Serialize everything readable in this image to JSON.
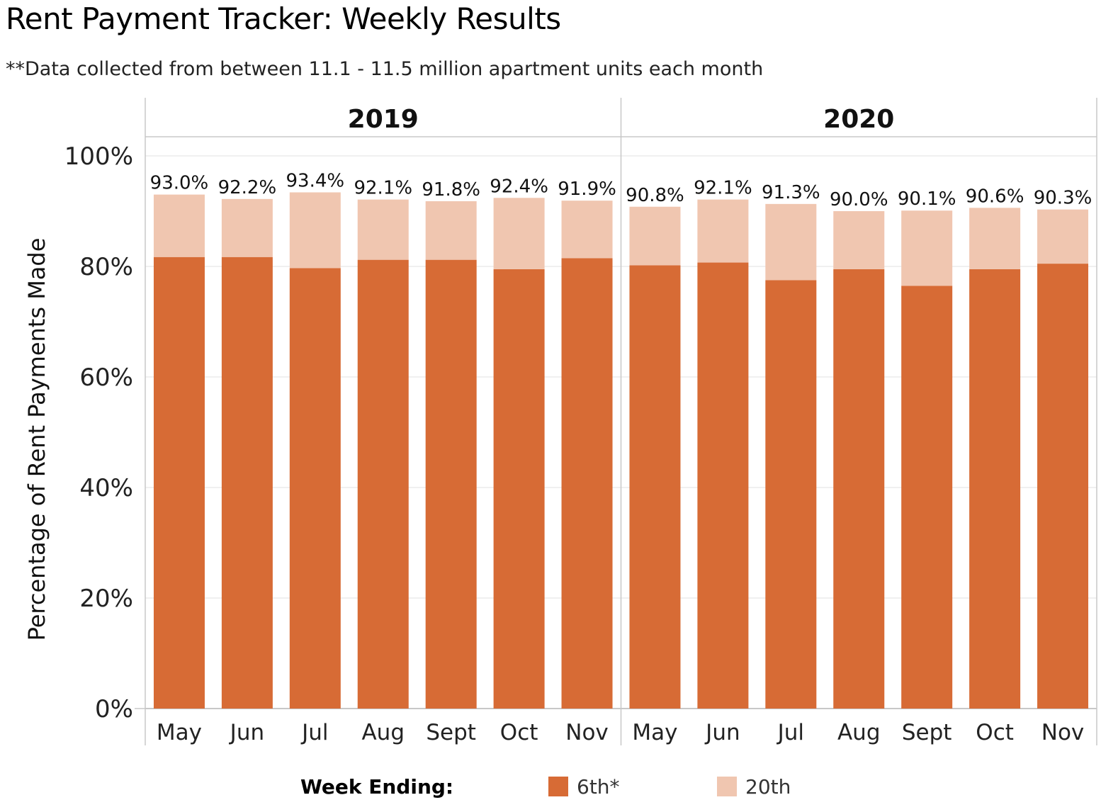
{
  "title": "Rent Payment Tracker: Weekly Results",
  "subtitle": "**Data collected from between 11.1 - 11.5 million apartment units each month",
  "colors": {
    "sixth": "#d76b35",
    "twentieth": "#f0c6b0",
    "grid": "#ececec",
    "axis": "#c8c8c8"
  },
  "legend": {
    "title": "Week Ending:",
    "items": [
      {
        "label": "6th*",
        "color": "#d76b35"
      },
      {
        "label": "20th",
        "color": "#f0c6b0"
      }
    ]
  },
  "chart_data": {
    "type": "bar",
    "stacked": true,
    "ylabel": "Percentage of Rent Payments Made",
    "ylim": [
      0,
      100
    ],
    "yticks": [
      "0%",
      "20%",
      "40%",
      "60%",
      "80%",
      "100%"
    ],
    "grid": true,
    "legend_position": "bottom",
    "panels": [
      {
        "year": "2019",
        "categories": [
          "May",
          "Jun",
          "Jul",
          "Aug",
          "Sept",
          "Oct",
          "Nov"
        ],
        "series": [
          {
            "name": "6th*",
            "values": [
              81.7,
              81.7,
              79.7,
              81.2,
              81.2,
              79.5,
              81.5
            ]
          },
          {
            "name": "20th",
            "values": [
              11.3,
              10.5,
              13.7,
              10.9,
              10.6,
              12.9,
              10.4
            ]
          }
        ],
        "totals": [
          "93.0%",
          "92.2%",
          "93.4%",
          "92.1%",
          "91.8%",
          "92.4%",
          "91.9%"
        ]
      },
      {
        "year": "2020",
        "categories": [
          "May",
          "Jun",
          "Jul",
          "Aug",
          "Sept",
          "Oct",
          "Nov"
        ],
        "series": [
          {
            "name": "6th*",
            "values": [
              80.2,
              80.7,
              77.5,
              79.5,
              76.5,
              79.5,
              80.5
            ]
          },
          {
            "name": "20th",
            "values": [
              10.6,
              11.4,
              13.8,
              10.5,
              13.6,
              11.1,
              9.8
            ]
          }
        ],
        "totals": [
          "90.8%",
          "92.1%",
          "91.3%",
          "90.0%",
          "90.1%",
          "90.6%",
          "90.3%"
        ]
      }
    ]
  }
}
